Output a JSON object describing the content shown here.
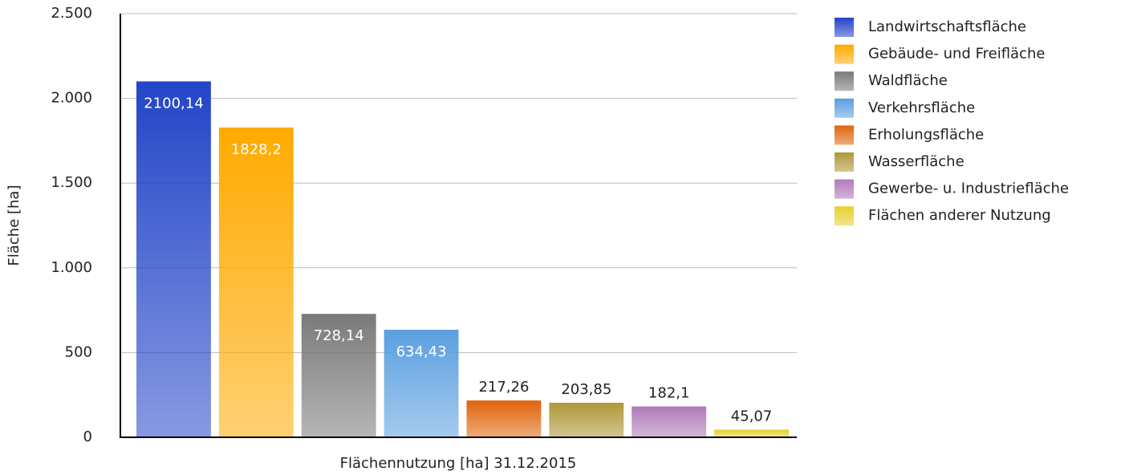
{
  "chart_data": {
    "type": "bar",
    "x_label": "Flächennutzung [ha] 31.12.2015",
    "y_label": "Fläche [ha]",
    "ylim": [
      0,
      2500
    ],
    "yticks": [
      0,
      500,
      {
        "value": 1000,
        "label": "1.000"
      },
      {
        "value": 1500,
        "label": "1.500"
      },
      {
        "value": 2000,
        "label": "2.000"
      },
      {
        "value": 2500,
        "label": "2.500"
      }
    ],
    "grid": true,
    "legend": "right",
    "series": [
      {
        "name": "Landwirtschaftsfläche",
        "color": "#2345c8",
        "values": [
          2100.14
        ],
        "value_labels": [
          "2100,14"
        ]
      },
      {
        "name": "Gebäude- und Freifläche",
        "color": "#ffaa00",
        "values": [
          1828.2
        ],
        "value_labels": [
          "1828,2"
        ]
      },
      {
        "name": "Waldfläche",
        "color": "#7a7a7a",
        "values": [
          728.14
        ],
        "value_labels": [
          "728,14"
        ]
      },
      {
        "name": "Verkehrsfläche",
        "color": "#5a9fe0",
        "values": [
          634.43
        ],
        "value_labels": [
          "634,43"
        ]
      },
      {
        "name": "Erholungsfläche",
        "color": "#e0650c",
        "values": [
          217.26
        ],
        "value_labels": [
          "217,26"
        ]
      },
      {
        "name": "Wasserfläche",
        "color": "#ae9838",
        "values": [
          203.85
        ],
        "value_labels": [
          "203,85"
        ]
      },
      {
        "name": "Gewerbe- u. Industriefläche",
        "color": "#b07ab8",
        "values": [
          182.1
        ],
        "value_labels": [
          "182,1"
        ]
      },
      {
        "name": "Flächen anderer Nutzung",
        "color": "#e6d030",
        "values": [
          45.07
        ],
        "value_labels": [
          "45,07"
        ]
      }
    ]
  }
}
